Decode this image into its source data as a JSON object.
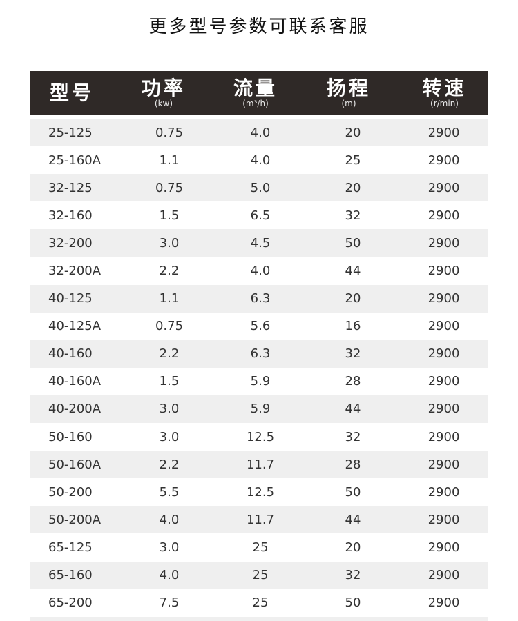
{
  "title": "更多型号参数可联系客服",
  "headers": [
    {
      "label": "型号",
      "unit": ""
    },
    {
      "label": "功率",
      "unit": "(kw)"
    },
    {
      "label": "流量",
      "unit": "(m³/h)"
    },
    {
      "label": "扬程",
      "unit": "(m)"
    },
    {
      "label": "转速",
      "unit": "(r/min)"
    }
  ],
  "rows": [
    {
      "model": "25-125",
      "power": "0.75",
      "flow": "4.0",
      "head": "20",
      "speed": "2900"
    },
    {
      "model": "25-160A",
      "power": "1.1",
      "flow": "4.0",
      "head": "25",
      "speed": "2900"
    },
    {
      "model": "32-125",
      "power": "0.75",
      "flow": "5.0",
      "head": "20",
      "speed": "2900"
    },
    {
      "model": "32-160",
      "power": "1.5",
      "flow": "6.5",
      "head": "32",
      "speed": "2900"
    },
    {
      "model": "32-200",
      "power": "3.0",
      "flow": "4.5",
      "head": "50",
      "speed": "2900"
    },
    {
      "model": "32-200A",
      "power": "2.2",
      "flow": "4.0",
      "head": "44",
      "speed": "2900"
    },
    {
      "model": "40-125",
      "power": "1.1",
      "flow": "6.3",
      "head": "20",
      "speed": "2900"
    },
    {
      "model": "40-125A",
      "power": "0.75",
      "flow": "5.6",
      "head": "16",
      "speed": "2900"
    },
    {
      "model": "40-160",
      "power": "2.2",
      "flow": "6.3",
      "head": "32",
      "speed": "2900"
    },
    {
      "model": "40-160A",
      "power": "1.5",
      "flow": "5.9",
      "head": "28",
      "speed": "2900"
    },
    {
      "model": "40-200A",
      "power": "3.0",
      "flow": "5.9",
      "head": "44",
      "speed": "2900"
    },
    {
      "model": "50-160",
      "power": "3.0",
      "flow": "12.5",
      "head": "32",
      "speed": "2900"
    },
    {
      "model": "50-160A",
      "power": "2.2",
      "flow": "11.7",
      "head": "28",
      "speed": "2900"
    },
    {
      "model": "50-200",
      "power": "5.5",
      "flow": "12.5",
      "head": "50",
      "speed": "2900"
    },
    {
      "model": "50-200A",
      "power": "4.0",
      "flow": "11.7",
      "head": "44",
      "speed": "2900"
    },
    {
      "model": "65-125",
      "power": "3.0",
      "flow": "25",
      "head": "20",
      "speed": "2900"
    },
    {
      "model": "65-160",
      "power": "4.0",
      "flow": "25",
      "head": "32",
      "speed": "2900"
    },
    {
      "model": "65-200",
      "power": "7.5",
      "flow": "25",
      "head": "50",
      "speed": "2900"
    }
  ],
  "colors": {
    "header_bg": "#2f2927",
    "stripe": "#efefef"
  }
}
